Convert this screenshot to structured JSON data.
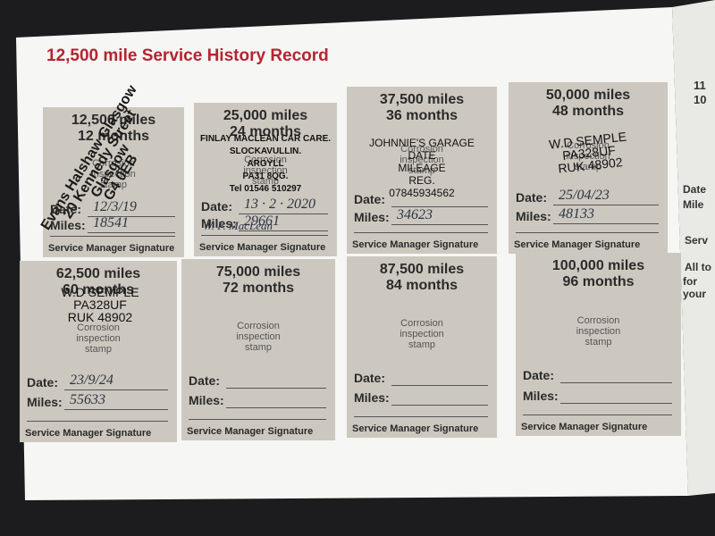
{
  "header": {
    "title": "12,500 mile Service History Record"
  },
  "labels": {
    "stamp": "Corrosion inspection stamp",
    "date": "Date:",
    "miles": "Miles:",
    "signature": "Service Manager Signature"
  },
  "boxes": [
    {
      "mileage": "12,500 miles",
      "months": "12 months",
      "date": "12/3/19",
      "miles": "18541",
      "stamp": [
        "Evans Halshaw Glasgow",
        "20 Kennedy Street Glasgow",
        "G4 0EB"
      ]
    },
    {
      "mileage": "25,000 miles",
      "months": "24 months",
      "date": "13 · 2 · 2020",
      "miles": "29661",
      "signed": "W. F. MacLean",
      "stamp": [
        "FINLAY MACLEAN CAR CARE.",
        "SLOCKAVULLIN.",
        "ARGYLL",
        "PA31 8QG.",
        "Tel 01546 510297"
      ]
    },
    {
      "mileage": "37,500 miles",
      "months": "36 months",
      "miles": "34623",
      "stamp": [
        "JOHNNIE'S GARAGE",
        "DATE",
        "MILEAGE",
        "REG.",
        "07845934562"
      ]
    },
    {
      "mileage": "50,000 miles",
      "months": "48 months",
      "date": "25/04/23",
      "miles": "48133",
      "stamp": [
        "W.D SEMPLE",
        "PA328UF",
        "RUK 48902"
      ]
    },
    {
      "mileage": "62,500 miles",
      "months": "60 months",
      "date": "23/9/24",
      "miles": "55633",
      "stamp": [
        "W.D SEMPLE",
        "PA328UF",
        "RUK 48902"
      ]
    },
    {
      "mileage": "75,000 miles",
      "months": "72 months"
    },
    {
      "mileage": "87,500 miles",
      "months": "84 months"
    },
    {
      "mileage": "100,000 miles",
      "months": "96 months"
    }
  ],
  "edge": [
    "11",
    "10",
    "Date",
    "Mile",
    "Serv",
    "All to",
    "for your"
  ]
}
